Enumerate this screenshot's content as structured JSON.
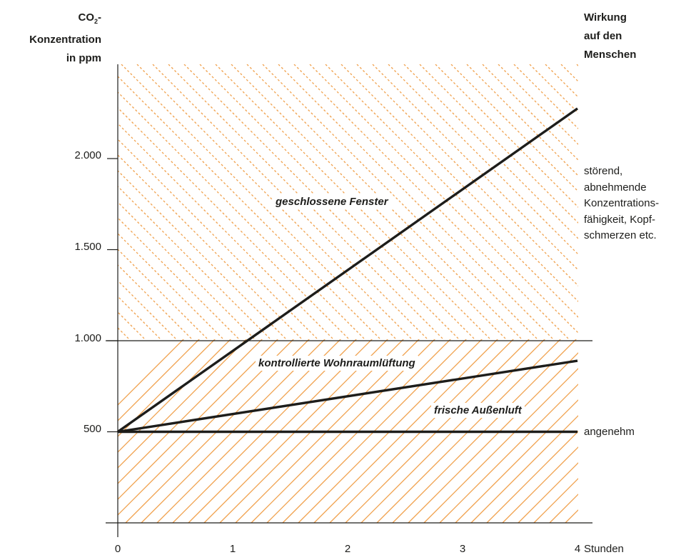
{
  "chart_data": {
    "type": "line",
    "ylabel": {
      "line1_main": "CO",
      "line1_sub": "2",
      "line1_tail": "-",
      "line2": "Konzentration",
      "line3": "in ppm"
    },
    "xlabel": "Stunden",
    "xlim": [
      0,
      4
    ],
    "ylim": [
      0,
      2500
    ],
    "x_ticks": [
      "0",
      "1",
      "2",
      "3",
      "4"
    ],
    "y_ticks": [
      {
        "value": 500,
        "label": "500"
      },
      {
        "value": 1000,
        "label": "1.000"
      },
      {
        "value": 1500,
        "label": "1.500"
      },
      {
        "value": 2000,
        "label": "2.000"
      }
    ],
    "series": [
      {
        "name": "geschlossene Fenster",
        "x": [
          0,
          4
        ],
        "y": [
          500,
          2275
        ]
      },
      {
        "name": "kontrollierte Wohnraumlüftung",
        "x": [
          0,
          4
        ],
        "y": [
          500,
          890
        ]
      },
      {
        "name": "frische Außenluft",
        "x": [
          0,
          4
        ],
        "y": [
          500,
          500
        ]
      }
    ],
    "threshold": 1000,
    "effect_heading": [
      "Wirkung",
      "auf den",
      "Menschen"
    ],
    "effect_upper": [
      "störend,",
      "abnehmende",
      "Konzentrations-",
      "fähigkeit, Kopf-",
      "schmerzen etc."
    ],
    "effect_lower": "angenehm",
    "colors": {
      "hatch": "#f0a04b",
      "line": "#1d1d1b",
      "axis": "#1d1d1b"
    }
  }
}
